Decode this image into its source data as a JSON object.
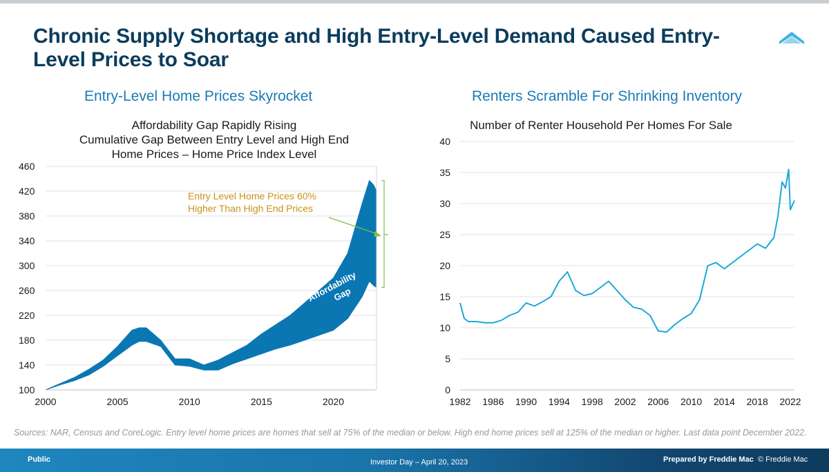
{
  "title": "Chronic Supply Shortage and High Entry-Level Demand Caused Entry-Level Prices to Soar",
  "left_subtitle": "Entry-Level Home Prices Skyrocket",
  "right_subtitle": "Renters Scramble For Shrinking Inventory",
  "sources": "Sources: NAR, Census and CoreLogic. Entry level home prices are homes that sell at 75% of the median or below. High end home prices sell at 125% of the median or higher. Last data point December 2022.",
  "footer": {
    "left": "Public",
    "center": "Investor Day – April 20, 2023",
    "right": "Prepared by Freddie Mac",
    "copyright": "© Freddie Mac"
  },
  "colors": {
    "title": "#0b3c5d",
    "subtitle": "#1b7bb5",
    "gap_fill": "#0a77b3",
    "renter_line": "#1ba8d8",
    "annotation_text": "#c8921a",
    "annotation_arrow": "#7ac143"
  },
  "icons": {
    "logo": "freddie-mac-roof-icon"
  },
  "chart_data": [
    {
      "type": "area",
      "title": "Affordability Gap Rapidly Rising\nCumulative Gap Between Entry Level and High End\nHome Prices – Home Price Index Level",
      "title_lines": [
        "Affordability Gap Rapidly Rising",
        "Cumulative Gap Between Entry Level and High End",
        "Home Prices – Home Price Index Level"
      ],
      "xlabel": "",
      "ylabel": "",
      "xlim": [
        2000,
        2023
      ],
      "ylim": [
        100,
        460
      ],
      "xticks": [
        2000,
        2005,
        2010,
        2015,
        2020
      ],
      "yticks": [
        100,
        140,
        180,
        220,
        260,
        300,
        340,
        380,
        420,
        460
      ],
      "grid": true,
      "series": [
        {
          "x": [
            2000,
            2001,
            2002,
            2003,
            2004,
            2005,
            2006,
            2006.5,
            2007,
            2008,
            2009,
            2010,
            2011,
            2012,
            2013,
            2014,
            2015,
            2016,
            2017,
            2018,
            2019,
            2020,
            2021,
            2022,
            2022.5,
            2022.8,
            2023
          ],
          "values": [
            100,
            110,
            120,
            133,
            148,
            170,
            196,
            200,
            200,
            180,
            150,
            150,
            140,
            148,
            160,
            172,
            190,
            205,
            220,
            240,
            260,
            280,
            320,
            400,
            437,
            430,
            420
          ]
        },
        {
          "x": [
            2000,
            2001,
            2002,
            2003,
            2004,
            2005,
            2006,
            2006.5,
            2007,
            2008,
            2009,
            2010,
            2011,
            2012,
            2013,
            2014,
            2015,
            2016,
            2017,
            2018,
            2019,
            2020,
            2021,
            2022,
            2022.5,
            2022.8,
            2023
          ],
          "values": [
            100,
            108,
            115,
            124,
            138,
            155,
            172,
            178,
            178,
            170,
            140,
            138,
            132,
            132,
            142,
            150,
            158,
            166,
            172,
            180,
            188,
            196,
            215,
            250,
            275,
            268,
            265
          ]
        }
      ],
      "annotations": [
        {
          "text": "Affordability Gap",
          "lines": [
            "Affordability",
            "Gap"
          ]
        },
        {
          "text": "Entry Level Home Prices 60% Higher Than High End Prices",
          "lines": [
            "Entry Level Home Prices 60%",
            "Higher Than High End Prices"
          ]
        }
      ]
    },
    {
      "type": "line",
      "title": "Number of Renter Household Per Homes For Sale",
      "xlabel": "",
      "ylabel": "",
      "xlim": [
        1982,
        2022.5
      ],
      "ylim": [
        0,
        40
      ],
      "xticks": [
        1982,
        1986,
        1990,
        1994,
        1998,
        2002,
        2006,
        2010,
        2014,
        2018,
        2022
      ],
      "yticks": [
        0,
        5,
        10,
        15,
        20,
        25,
        30,
        35,
        40
      ],
      "grid": true,
      "x": [
        1982,
        1982.5,
        1983,
        1984,
        1985,
        1986,
        1987,
        1988,
        1989,
        1990,
        1991,
        1992,
        1993,
        1994,
        1995,
        1996,
        1997,
        1998,
        1999,
        2000,
        2001,
        2002,
        2003,
        2004,
        2005,
        2006,
        2007,
        2008,
        2009,
        2010,
        2011,
        2012,
        2013,
        2014,
        2015,
        2016,
        2017,
        2018,
        2019,
        2020,
        2020.5,
        2021,
        2021.4,
        2021.8,
        2022,
        2022.5
      ],
      "values": [
        14,
        11.5,
        11,
        11,
        10.8,
        10.8,
        11.2,
        12,
        12.5,
        14,
        13.5,
        14.2,
        15,
        17.5,
        19,
        16,
        15.2,
        15.5,
        16.5,
        17.5,
        16,
        14.5,
        13.3,
        13,
        12,
        9.5,
        9.3,
        10.5,
        11.5,
        12.3,
        14.5,
        20,
        20.5,
        19.5,
        20.5,
        21.5,
        22.5,
        23.5,
        22.8,
        24.5,
        28,
        33.5,
        32.5,
        35.5,
        29,
        30.5
      ]
    }
  ]
}
